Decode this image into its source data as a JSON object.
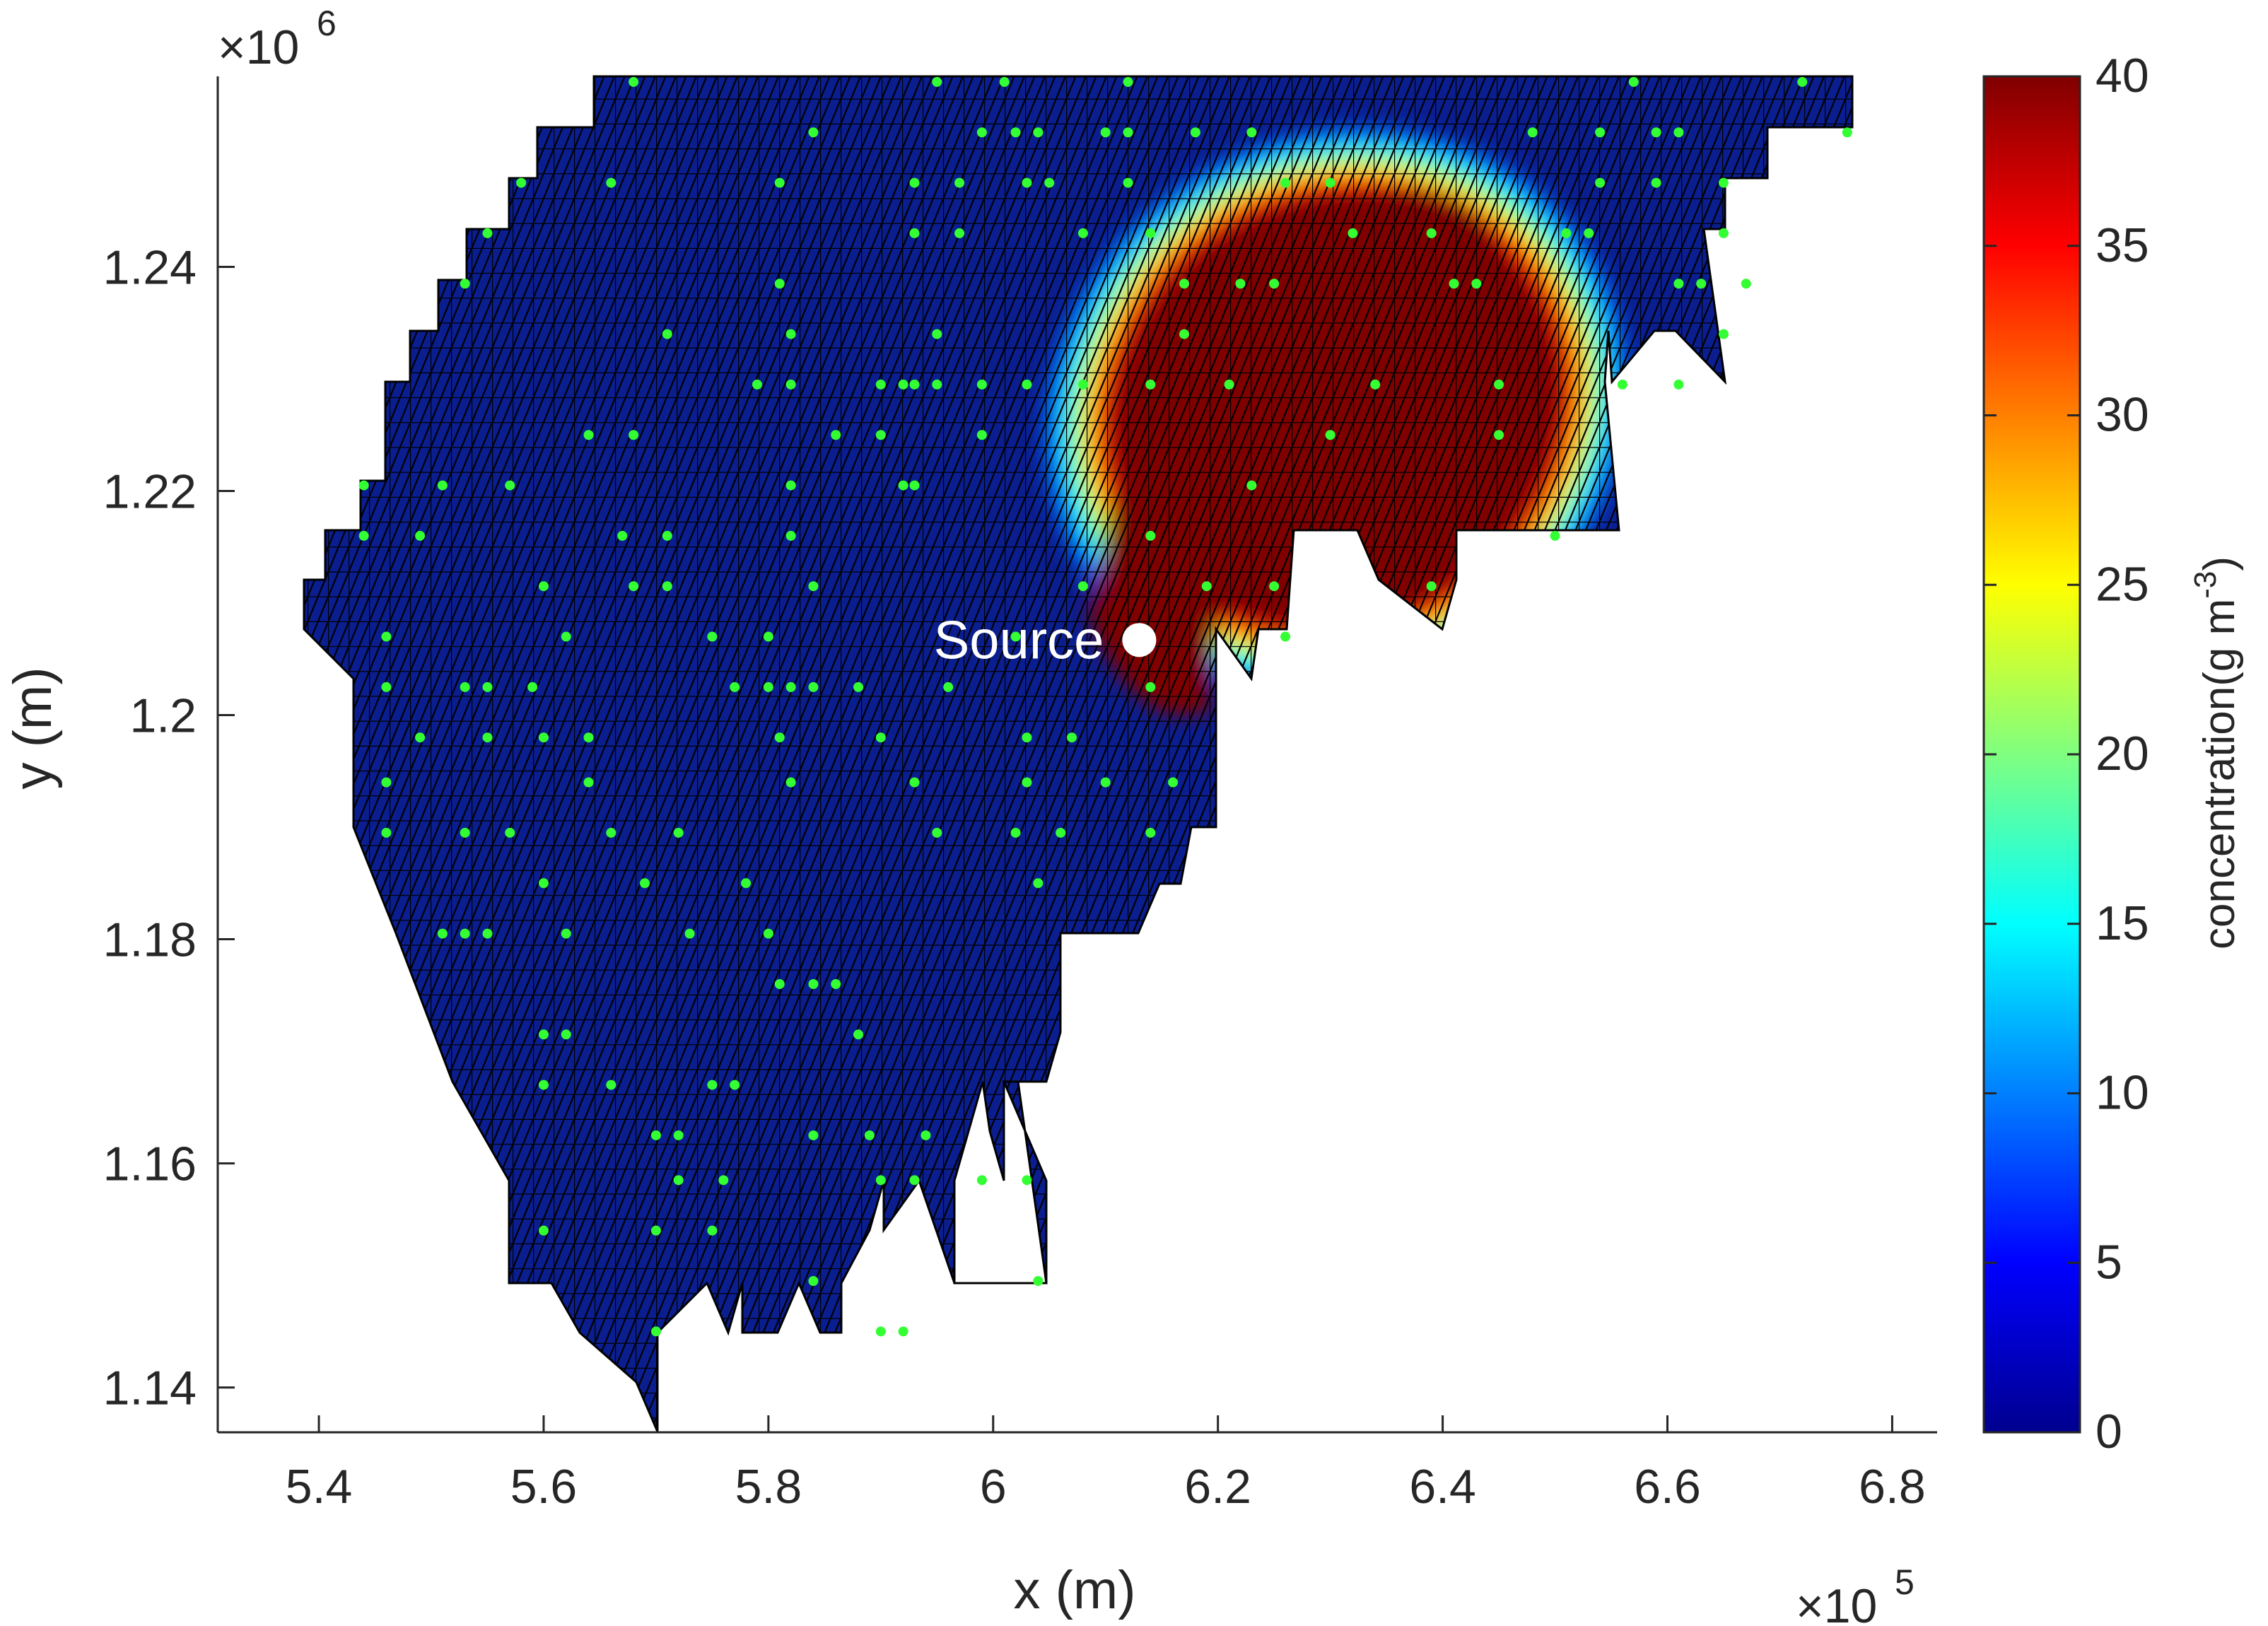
{
  "chart_data": {
    "type": "heatmap",
    "xlabel": "x (m)",
    "ylabel": "y (m)",
    "x_multiplier": "×10",
    "x_multiplier_exp": "5",
    "y_multiplier": "×10",
    "y_multiplier_exp": "6",
    "xlim": [
      5.31,
      6.84
    ],
    "ylim": [
      1.136,
      1.257
    ],
    "x_ticks": [
      5.4,
      5.6,
      5.8,
      6.0,
      6.2,
      6.4,
      6.6,
      6.8
    ],
    "x_tick_labels": [
      "5.4",
      "5.6",
      "5.8",
      "6",
      "6.2",
      "6.4",
      "6.6",
      "6.8"
    ],
    "y_ticks": [
      1.14,
      1.16,
      1.18,
      1.2,
      1.22,
      1.24
    ],
    "y_tick_labels": [
      "1.14",
      "1.16",
      "1.18",
      "1.2",
      "1.22",
      "1.24"
    ],
    "colorbar": {
      "label": "concentration(g m",
      "label_exp": "-3",
      "label_close": ")",
      "range": [
        0,
        40
      ],
      "ticks": [
        0,
        5,
        10,
        15,
        20,
        25,
        30,
        35,
        40
      ],
      "tick_labels": [
        "0",
        "5",
        "10",
        "15",
        "20",
        "25",
        "30",
        "35",
        "40"
      ],
      "colormap": "jet"
    },
    "background_value": 0,
    "plume": {
      "peak_value": 40,
      "description_level": "saturated core"
    },
    "source": {
      "label": "Source",
      "x": 6.13,
      "y": 1.2067
    },
    "sensors_color": "#33ff33",
    "mesh_color": "#000000",
    "sensors": [
      [
        5.68,
        1.2565
      ],
      [
        5.95,
        1.2565
      ],
      [
        6.01,
        1.2565
      ],
      [
        6.12,
        1.2565
      ],
      [
        6.57,
        1.2565
      ],
      [
        6.72,
        1.2565
      ],
      [
        5.84,
        1.252
      ],
      [
        5.99,
        1.252
      ],
      [
        6.02,
        1.252
      ],
      [
        6.04,
        1.252
      ],
      [
        6.1,
        1.252
      ],
      [
        6.12,
        1.252
      ],
      [
        6.18,
        1.252
      ],
      [
        6.23,
        1.252
      ],
      [
        6.48,
        1.252
      ],
      [
        6.54,
        1.252
      ],
      [
        6.59,
        1.252
      ],
      [
        6.61,
        1.252
      ],
      [
        6.76,
        1.252
      ],
      [
        5.58,
        1.2475
      ],
      [
        5.66,
        1.2475
      ],
      [
        5.81,
        1.2475
      ],
      [
        5.93,
        1.2475
      ],
      [
        5.97,
        1.2475
      ],
      [
        6.03,
        1.2475
      ],
      [
        6.05,
        1.2475
      ],
      [
        6.12,
        1.2475
      ],
      [
        6.26,
        1.2475
      ],
      [
        6.3,
        1.2475
      ],
      [
        6.54,
        1.2475
      ],
      [
        6.59,
        1.2475
      ],
      [
        6.65,
        1.2475
      ],
      [
        5.55,
        1.243
      ],
      [
        5.93,
        1.243
      ],
      [
        5.97,
        1.243
      ],
      [
        6.08,
        1.243
      ],
      [
        6.14,
        1.243
      ],
      [
        6.32,
        1.243
      ],
      [
        6.39,
        1.243
      ],
      [
        6.51,
        1.243
      ],
      [
        6.53,
        1.243
      ],
      [
        6.65,
        1.243
      ],
      [
        5.53,
        1.2385
      ],
      [
        5.81,
        1.2385
      ],
      [
        6.17,
        1.2385
      ],
      [
        6.22,
        1.2385
      ],
      [
        6.25,
        1.2385
      ],
      [
        6.41,
        1.2385
      ],
      [
        6.43,
        1.2385
      ],
      [
        6.61,
        1.2385
      ],
      [
        6.63,
        1.2385
      ],
      [
        6.67,
        1.2385
      ],
      [
        5.71,
        1.234
      ],
      [
        5.82,
        1.234
      ],
      [
        5.95,
        1.234
      ],
      [
        6.17,
        1.234
      ],
      [
        6.65,
        1.234
      ],
      [
        5.79,
        1.2295
      ],
      [
        5.82,
        1.2295
      ],
      [
        5.9,
        1.2295
      ],
      [
        5.92,
        1.2295
      ],
      [
        5.93,
        1.2295
      ],
      [
        5.95,
        1.2295
      ],
      [
        5.99,
        1.2295
      ],
      [
        6.03,
        1.2295
      ],
      [
        6.08,
        1.2295
      ],
      [
        6.14,
        1.2295
      ],
      [
        6.21,
        1.2295
      ],
      [
        6.34,
        1.2295
      ],
      [
        6.45,
        1.2295
      ],
      [
        6.56,
        1.2295
      ],
      [
        6.61,
        1.2295
      ],
      [
        5.64,
        1.225
      ],
      [
        5.68,
        1.225
      ],
      [
        5.86,
        1.225
      ],
      [
        5.9,
        1.225
      ],
      [
        5.99,
        1.225
      ],
      [
        6.3,
        1.225
      ],
      [
        6.45,
        1.225
      ],
      [
        5.44,
        1.2205
      ],
      [
        5.51,
        1.2205
      ],
      [
        5.57,
        1.2205
      ],
      [
        5.82,
        1.2205
      ],
      [
        5.92,
        1.2205
      ],
      [
        5.93,
        1.2205
      ],
      [
        6.23,
        1.2205
      ],
      [
        5.44,
        1.216
      ],
      [
        5.49,
        1.216
      ],
      [
        5.67,
        1.216
      ],
      [
        5.71,
        1.216
      ],
      [
        5.82,
        1.216
      ],
      [
        6.14,
        1.216
      ],
      [
        6.5,
        1.216
      ],
      [
        5.6,
        1.2115
      ],
      [
        5.68,
        1.2115
      ],
      [
        5.71,
        1.2115
      ],
      [
        5.84,
        1.2115
      ],
      [
        6.08,
        1.2115
      ],
      [
        6.19,
        1.2115
      ],
      [
        6.25,
        1.2115
      ],
      [
        6.39,
        1.2115
      ],
      [
        5.46,
        1.207
      ],
      [
        5.62,
        1.207
      ],
      [
        5.75,
        1.207
      ],
      [
        5.8,
        1.207
      ],
      [
        6.02,
        1.207
      ],
      [
        6.14,
        1.207
      ],
      [
        6.26,
        1.207
      ],
      [
        5.46,
        1.2025
      ],
      [
        5.53,
        1.2025
      ],
      [
        5.55,
        1.2025
      ],
      [
        5.59,
        1.2025
      ],
      [
        5.77,
        1.2025
      ],
      [
        5.8,
        1.2025
      ],
      [
        5.82,
        1.2025
      ],
      [
        5.84,
        1.2025
      ],
      [
        5.88,
        1.2025
      ],
      [
        5.96,
        1.2025
      ],
      [
        6.14,
        1.2025
      ],
      [
        5.49,
        1.198
      ],
      [
        5.55,
        1.198
      ],
      [
        5.6,
        1.198
      ],
      [
        5.64,
        1.198
      ],
      [
        5.81,
        1.198
      ],
      [
        5.9,
        1.198
      ],
      [
        6.03,
        1.198
      ],
      [
        6.07,
        1.198
      ],
      [
        5.46,
        1.194
      ],
      [
        5.64,
        1.194
      ],
      [
        5.82,
        1.194
      ],
      [
        5.93,
        1.194
      ],
      [
        6.03,
        1.194
      ],
      [
        6.1,
        1.194
      ],
      [
        6.16,
        1.194
      ],
      [
        5.46,
        1.1895
      ],
      [
        5.53,
        1.1895
      ],
      [
        5.57,
        1.1895
      ],
      [
        5.66,
        1.1895
      ],
      [
        5.72,
        1.1895
      ],
      [
        5.95,
        1.1895
      ],
      [
        6.02,
        1.1895
      ],
      [
        6.06,
        1.1895
      ],
      [
        6.14,
        1.1895
      ],
      [
        5.6,
        1.185
      ],
      [
        5.69,
        1.185
      ],
      [
        5.78,
        1.185
      ],
      [
        6.04,
        1.185
      ],
      [
        5.51,
        1.1805
      ],
      [
        5.53,
        1.1805
      ],
      [
        5.55,
        1.1805
      ],
      [
        5.62,
        1.1805
      ],
      [
        5.73,
        1.1805
      ],
      [
        5.8,
        1.1805
      ],
      [
        5.81,
        1.176
      ],
      [
        5.84,
        1.176
      ],
      [
        5.86,
        1.176
      ],
      [
        5.6,
        1.1715
      ],
      [
        5.62,
        1.1715
      ],
      [
        5.88,
        1.1715
      ],
      [
        5.6,
        1.167
      ],
      [
        5.66,
        1.167
      ],
      [
        5.75,
        1.167
      ],
      [
        5.77,
        1.167
      ],
      [
        5.7,
        1.1625
      ],
      [
        5.72,
        1.1625
      ],
      [
        5.84,
        1.1625
      ],
      [
        5.89,
        1.1625
      ],
      [
        5.94,
        1.1625
      ],
      [
        5.72,
        1.1585
      ],
      [
        5.76,
        1.1585
      ],
      [
        5.9,
        1.1585
      ],
      [
        5.93,
        1.1585
      ],
      [
        5.99,
        1.1585
      ],
      [
        6.03,
        1.1585
      ],
      [
        5.6,
        1.154
      ],
      [
        5.7,
        1.154
      ],
      [
        5.75,
        1.154
      ],
      [
        5.84,
        1.1495
      ],
      [
        6.04,
        1.1495
      ],
      [
        5.7,
        1.145
      ],
      [
        5.9,
        1.145
      ],
      [
        5.92,
        1.145
      ]
    ]
  }
}
